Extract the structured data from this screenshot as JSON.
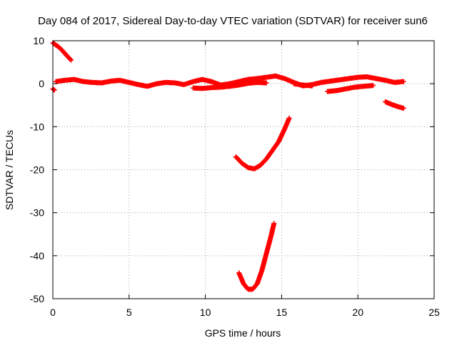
{
  "chart_data": {
    "type": "scatter",
    "title": "Day 084 of 2017, Sidereal Day-to-day VTEC variation (SDTVAR) for receiver sun6",
    "xlabel": "GPS time / hours",
    "ylabel": "SDTVAR / TECUs",
    "xlim": [
      0,
      25
    ],
    "ylim": [
      -50,
      10
    ],
    "xticks": [
      "0",
      "5",
      "10",
      "15",
      "20",
      "25"
    ],
    "yticks": [
      "10",
      "0",
      "-10",
      "-20",
      "-30",
      "-40",
      "-50"
    ],
    "grid": true,
    "legend": "none",
    "marker": "plus",
    "series_color": "#ff0000",
    "series": [
      {
        "x": [
          0.0,
          0.2,
          0.4,
          0.6,
          0.8,
          1.0,
          1.2
        ],
        "y": [
          9.5,
          9.0,
          8.5,
          7.8,
          7.0,
          6.2,
          5.5
        ]
      },
      {
        "x": [
          0.0,
          0.1
        ],
        "y": [
          -1.2,
          -1.5
        ]
      },
      {
        "x": [
          0.2,
          0.8,
          1.4,
          2.0,
          2.6,
          3.2,
          3.8,
          4.4,
          5.0,
          5.6,
          6.2,
          6.8,
          7.4,
          8.0,
          8.6,
          9.2,
          9.8,
          10.4,
          11.0,
          11.6,
          12.2,
          12.8,
          13.4,
          14.0,
          14.6,
          15.2,
          15.8,
          16.4,
          17.0,
          17.6,
          18.2,
          18.8,
          19.4,
          20.0,
          20.6,
          21.2,
          21.8,
          22.4,
          23.0
        ],
        "y": [
          0.5,
          0.8,
          1.0,
          0.5,
          0.3,
          0.2,
          0.6,
          0.8,
          0.3,
          -0.2,
          -0.6,
          0.0,
          0.3,
          0.2,
          -0.2,
          0.5,
          1.0,
          0.5,
          -0.3,
          0.0,
          0.5,
          1.0,
          1.2,
          1.5,
          1.8,
          1.2,
          0.3,
          -0.5,
          -0.2,
          0.3,
          0.6,
          0.9,
          1.2,
          1.5,
          1.6,
          1.2,
          0.8,
          0.3,
          0.5
        ]
      },
      {
        "x": [
          9.2,
          9.8,
          10.4,
          11.0,
          11.6,
          12.2,
          12.8,
          13.4,
          14.0
        ],
        "y": [
          -1.0,
          -1.1,
          -0.9,
          -0.8,
          -0.6,
          -0.3,
          0.1,
          0.3,
          0.2
        ]
      },
      {
        "x": [
          15.8,
          16.4,
          17.0
        ],
        "y": [
          0.0,
          -0.3,
          -0.5
        ]
      },
      {
        "x": [
          18.0,
          18.6,
          19.2,
          19.8,
          20.4,
          21.0
        ],
        "y": [
          -1.8,
          -1.6,
          -1.2,
          -0.8,
          -0.6,
          -0.4
        ]
      },
      {
        "x": [
          21.8,
          22.2,
          22.6,
          23.0
        ],
        "y": [
          -4.2,
          -4.8,
          -5.3,
          -5.7
        ]
      },
      {
        "x": [
          12.0,
          12.4,
          12.8,
          13.2,
          13.6,
          14.0,
          14.4,
          14.8,
          15.2,
          15.5
        ],
        "y": [
          -17.0,
          -18.5,
          -19.5,
          -19.8,
          -19.0,
          -17.5,
          -15.5,
          -13.5,
          -10.5,
          -8.0
        ]
      },
      {
        "x": [
          12.2,
          12.5,
          12.8,
          13.1,
          13.4,
          13.7,
          14.0,
          14.3,
          14.5
        ],
        "y": [
          -44.0,
          -46.5,
          -47.8,
          -47.8,
          -46.5,
          -43.5,
          -39.5,
          -35.5,
          -32.5
        ]
      }
    ]
  }
}
